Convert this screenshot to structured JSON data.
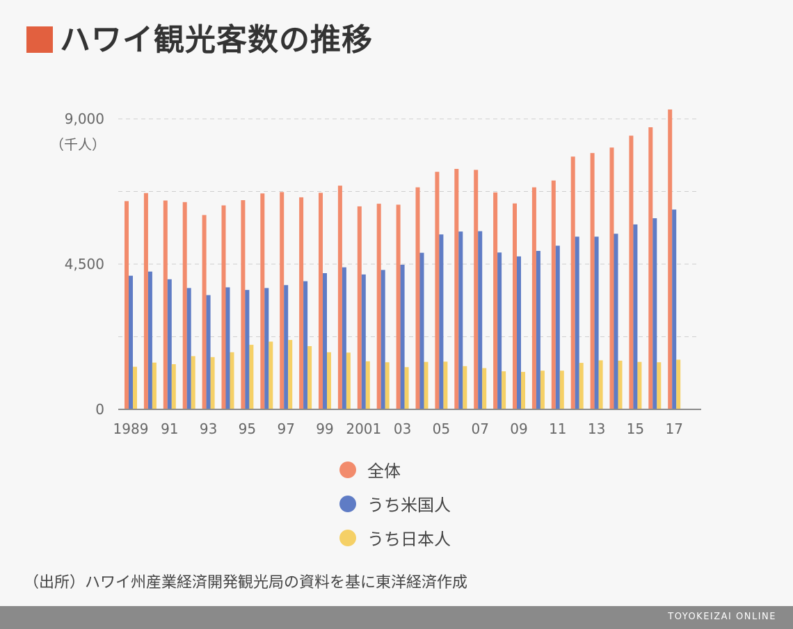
{
  "title": "ハワイ観光客数の推移",
  "source": "（出所）ハワイ州産業経済開発観光局の資料を基に東洋経済作成",
  "brand": "TOYOKEIZAI ONLINE",
  "colors": {
    "accent": "#e2603f",
    "total": "#f28b6c",
    "us": "#5f7cc5",
    "japan": "#f5d066"
  },
  "chart_data": {
    "type": "bar",
    "title": "ハワイ観光客数の推移",
    "unit_label": "（千人）",
    "ylim": [
      0,
      9000
    ],
    "y_ticks": [
      0,
      4500,
      9000
    ],
    "y_tick_labels": [
      "0",
      "4,500",
      "9,000"
    ],
    "grid": true,
    "legend_position": "bottom",
    "x_tick_labels": [
      "1989",
      "91",
      "93",
      "95",
      "97",
      "99",
      "2001",
      "03",
      "05",
      "07",
      "09",
      "11",
      "13",
      "15",
      "17"
    ],
    "categories": [
      "1989",
      "1990",
      "1991",
      "1992",
      "1993",
      "1994",
      "1995",
      "1996",
      "1997",
      "1998",
      "1999",
      "2000",
      "2001",
      "2002",
      "2003",
      "2004",
      "2005",
      "2006",
      "2007",
      "2008",
      "2009",
      "2010",
      "2011",
      "2012",
      "2013",
      "2014",
      "2015",
      "2016",
      "2017"
    ],
    "series": [
      {
        "name": "全体",
        "values": [
          6450,
          6700,
          6470,
          6420,
          6020,
          6320,
          6480,
          6690,
          6730,
          6570,
          6710,
          6930,
          6290,
          6370,
          6340,
          6880,
          7360,
          7450,
          7420,
          6720,
          6380,
          6880,
          7090,
          7830,
          7940,
          8110,
          8480,
          8740,
          9290
        ]
      },
      {
        "name": "うち米国人",
        "values": [
          4140,
          4270,
          4030,
          3760,
          3540,
          3780,
          3700,
          3760,
          3850,
          3970,
          4220,
          4400,
          4180,
          4320,
          4480,
          4850,
          5420,
          5510,
          5520,
          4860,
          4740,
          4910,
          5070,
          5350,
          5350,
          5440,
          5730,
          5920,
          6190
        ]
      },
      {
        "name": "うち日本人",
        "values": [
          1320,
          1450,
          1400,
          1650,
          1620,
          1770,
          2000,
          2100,
          2150,
          1960,
          1770,
          1760,
          1490,
          1460,
          1310,
          1470,
          1480,
          1340,
          1280,
          1180,
          1160,
          1200,
          1200,
          1440,
          1520,
          1510,
          1470,
          1460,
          1540
        ]
      }
    ]
  }
}
